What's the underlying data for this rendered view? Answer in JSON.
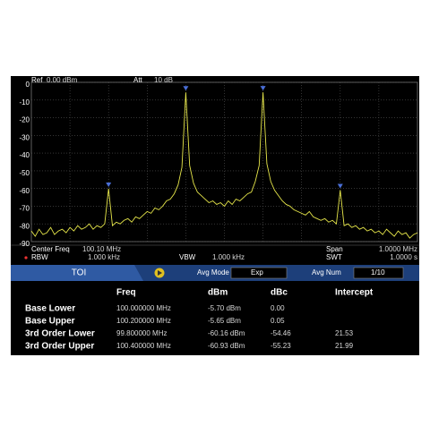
{
  "header": {
    "ref_label": "Ref",
    "ref_value": "0.00 dBm",
    "att_label": "Att",
    "att_value": "10 dB"
  },
  "chart_data": {
    "type": "line",
    "color": "#e6e64a",
    "grid": true,
    "xlim": [
      99.6,
      100.6
    ],
    "ylim": [
      0,
      -90
    ],
    "yticks": [
      0,
      -10,
      -20,
      -30,
      -40,
      -50,
      -60,
      -70,
      -80,
      -90
    ],
    "x": [
      99.6,
      99.61,
      99.62,
      99.63,
      99.64,
      99.65,
      99.66,
      99.67,
      99.68,
      99.69,
      99.7,
      99.71,
      99.72,
      99.73,
      99.74,
      99.75,
      99.76,
      99.77,
      99.78,
      99.79,
      99.8,
      99.81,
      99.82,
      99.83,
      99.84,
      99.85,
      99.86,
      99.87,
      99.88,
      99.89,
      99.9,
      99.91,
      99.92,
      99.93,
      99.94,
      99.95,
      99.96,
      99.97,
      99.98,
      99.99,
      100.0,
      100.01,
      100.02,
      100.03,
      100.04,
      100.05,
      100.06,
      100.07,
      100.08,
      100.09,
      100.1,
      100.11,
      100.12,
      100.13,
      100.14,
      100.15,
      100.16,
      100.17,
      100.18,
      100.19,
      100.2,
      100.21,
      100.22,
      100.23,
      100.24,
      100.25,
      100.26,
      100.27,
      100.28,
      100.29,
      100.3,
      100.31,
      100.32,
      100.33,
      100.34,
      100.35,
      100.36,
      100.37,
      100.38,
      100.39,
      100.4,
      100.41,
      100.42,
      100.43,
      100.44,
      100.45,
      100.46,
      100.47,
      100.48,
      100.49,
      100.5,
      100.51,
      100.52,
      100.53,
      100.54,
      100.55,
      100.56,
      100.57,
      100.58,
      100.59,
      100.6
    ],
    "values": [
      -84,
      -87,
      -83,
      -86,
      -85,
      -82,
      -86,
      -84,
      -83,
      -85,
      -82,
      -84,
      -81,
      -83,
      -82,
      -80,
      -83,
      -81,
      -82,
      -80,
      -60.16,
      -81,
      -79,
      -80,
      -78,
      -77,
      -79,
      -76,
      -77,
      -75,
      -73,
      -74,
      -71,
      -72,
      -70,
      -67,
      -66,
      -63,
      -58,
      -48,
      -5.7,
      -47,
      -57,
      -62,
      -64,
      -66,
      -68,
      -67,
      -69,
      -68,
      -70,
      -67,
      -69,
      -66,
      -67,
      -65,
      -63,
      -62,
      -56,
      -47,
      -5.65,
      -46,
      -56,
      -61,
      -64,
      -67,
      -69,
      -70,
      -72,
      -73,
      -74,
      -75,
      -73,
      -76,
      -77,
      -78,
      -77,
      -79,
      -78,
      -80,
      -60.93,
      -81,
      -80,
      -82,
      -81,
      -83,
      -82,
      -84,
      -83,
      -85,
      -84,
      -86,
      -83,
      -85,
      -87,
      -84,
      -86,
      -85,
      -88,
      -86,
      -85
    ],
    "markers": [
      20,
      40,
      60,
      80
    ]
  },
  "footer": {
    "center_label": "Center Freq",
    "center_value": "100.10 MHz",
    "span_label": "Span",
    "span_value": "1.0000 MHz",
    "rbw_label": "RBW",
    "rbw_value": "1.000 kHz",
    "vbw_label": "VBW",
    "vbw_value": "1.000 kHz",
    "swt_label": "SWT",
    "swt_value": "1.0000 s"
  },
  "toolbar": {
    "tab": "TOI",
    "avg_mode_label": "Avg Mode",
    "avg_mode_value": "Exp",
    "avg_num_label": "Avg Num",
    "avg_num_value": "1/10"
  },
  "table": {
    "columns": [
      "Freq",
      "dBm",
      "dBc",
      "Intercept"
    ],
    "rows": [
      {
        "label": "Base Lower",
        "freq": "100.000000 MHz",
        "dbm": "-5.70 dBm",
        "dbc": "0.00"
      },
      {
        "label": "Base Upper",
        "freq": "100.200000 MHz",
        "dbm": "-5.65 dBm",
        "dbc": "0.05"
      },
      {
        "label": "3rd Order Lower",
        "freq": "99.800000 MHz",
        "dbm": "-60.16 dBm",
        "dbc": "-54.46",
        "intercept": "21.53"
      },
      {
        "label": "3rd Order Upper",
        "freq": "100.400000 MHz",
        "dbm": "-60.93 dBm",
        "dbc": "-55.23",
        "intercept": "21.99"
      }
    ]
  }
}
